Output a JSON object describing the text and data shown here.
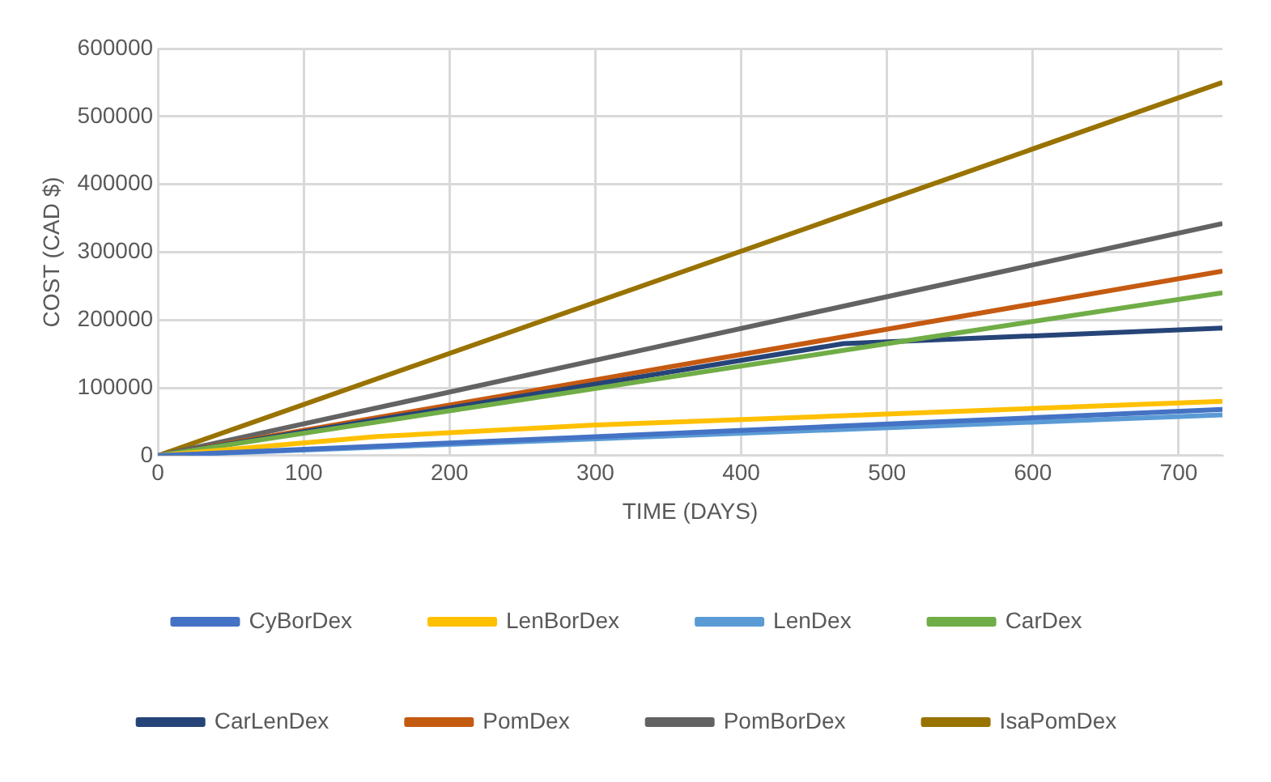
{
  "chart_data": {
    "type": "line",
    "xlabel": "TIME (DAYS)",
    "ylabel": "COST (CAD $)",
    "xlim": [
      0,
      730
    ],
    "xticks": [
      0,
      100,
      200,
      300,
      400,
      500,
      600,
      700
    ],
    "ylim": [
      0,
      600000
    ],
    "yticks": [
      0,
      100000,
      200000,
      300000,
      400000,
      500000,
      600000
    ],
    "grid": true,
    "legend": "bottom",
    "marker": "none",
    "line_style": "solid",
    "series": [
      {
        "name": "CyBorDex",
        "color": "#4472c4",
        "x": [
          0,
          730
        ],
        "values": [
          0,
          68000
        ]
      },
      {
        "name": "LenBorDex",
        "color": "#ffc000",
        "x": [
          0,
          150,
          300,
          730
        ],
        "values": [
          0,
          28000,
          45000,
          80000
        ]
      },
      {
        "name": "LenDex",
        "color": "#5b9bd5",
        "x": [
          0,
          730
        ],
        "values": [
          0,
          60000
        ]
      },
      {
        "name": "CarDex",
        "color": "#70ad47",
        "x": [
          0,
          500,
          730
        ],
        "values": [
          0,
          165000,
          240000
        ]
      },
      {
        "name": "CarLenDex",
        "color": "#264478",
        "x": [
          0,
          470,
          730
        ],
        "values": [
          0,
          165000,
          188000
        ]
      },
      {
        "name": "PomDex",
        "color": "#c55a11",
        "x": [
          0,
          730
        ],
        "values": [
          0,
          272000
        ]
      },
      {
        "name": "PomBorDex",
        "color": "#636363",
        "x": [
          0,
          730
        ],
        "values": [
          0,
          342000
        ]
      },
      {
        "name": "IsaPomDex",
        "color": "#997300",
        "x": [
          0,
          730
        ],
        "values": [
          0,
          550000
        ]
      }
    ]
  }
}
